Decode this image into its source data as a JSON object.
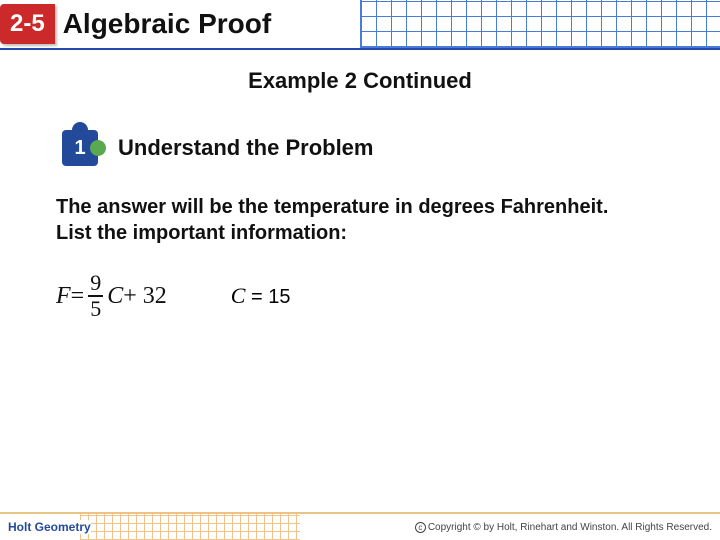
{
  "header": {
    "lesson_number": "2-5",
    "title": "Algebraic Proof",
    "badge_bg": "#cc2a2a",
    "rule_color": "#2549a8"
  },
  "subtitle": "Example 2 Continued",
  "step": {
    "number": "1",
    "title": "Understand the Problem",
    "puzzle_color": "#234a9a",
    "knob_accent": "#5aa84f"
  },
  "body": {
    "line1": "The answer will be the temperature in degrees Fahrenheit.",
    "line2": "List the important information:"
  },
  "formula": {
    "lhs": "F",
    "eq": " = ",
    "frac_num": "9",
    "frac_den": "5",
    "var": "C",
    "const": " + 32"
  },
  "given": {
    "var": "C",
    "eq": " = 15"
  },
  "footer": {
    "brand": "Holt Geometry",
    "copyright": "Copyright © by Holt, Rinehart and Winston. All Rights Reserved."
  },
  "colors": {
    "text": "#111111",
    "footer_brand": "#234a9a",
    "footer_grid": "#f2c38a",
    "header_grid": "#4a7bd6",
    "bg": "#ffffff"
  },
  "fonts": {
    "title_pt": 28,
    "subtitle_pt": 22,
    "body_pt": 20,
    "formula_pt": 24
  }
}
